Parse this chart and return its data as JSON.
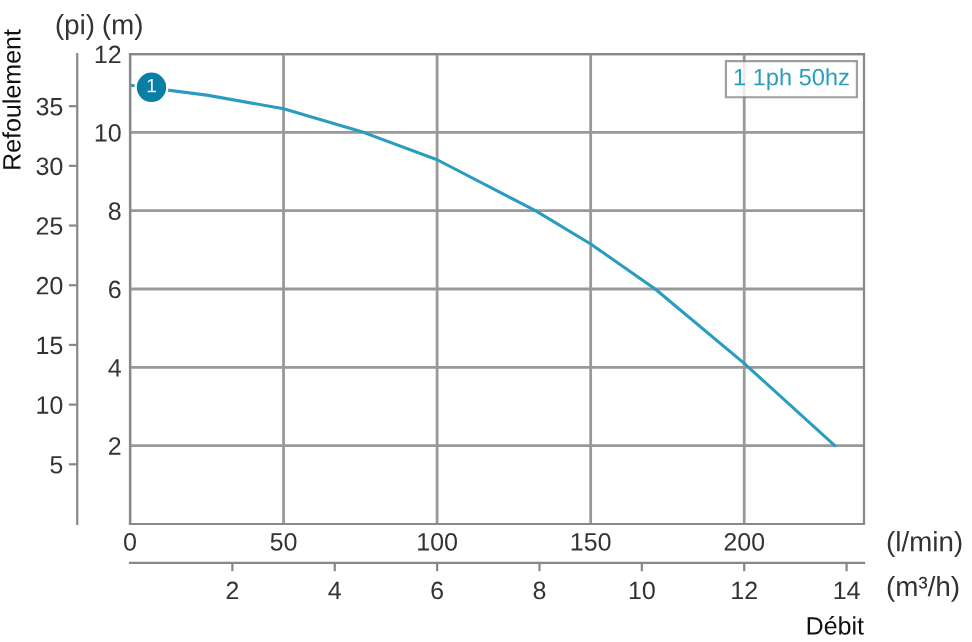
{
  "chart_data": {
    "type": "line",
    "x": [
      0,
      25,
      50,
      76,
      100,
      132,
      150,
      171,
      200,
      229.5
    ],
    "series": [
      {
        "name": "1 1ph 50hz",
        "color": "#2a9cc0",
        "values": [
          11.2,
          10.95,
          10.6,
          10.0,
          9.3,
          8.0,
          7.15,
          6.0,
          4.1,
          2.0
        ]
      }
    ],
    "xlim": [
      0,
      239
    ],
    "xticks": [
      0,
      50,
      100,
      150,
      200
    ],
    "xlabel": "(l/min)",
    "ylim": [
      0,
      12
    ],
    "yticks": [
      2,
      4,
      6,
      8,
      10,
      12
    ],
    "ylabel": "(m)",
    "y2lim": [
      0,
      39.37
    ],
    "y2ticks": [
      5,
      10,
      15,
      20,
      25,
      30,
      35
    ],
    "y2label": "(pi)",
    "x2lim": [
      0,
      14.34
    ],
    "x2ticks": [
      2,
      4,
      6,
      8,
      10,
      12,
      14
    ],
    "x2label": "(m³/h)",
    "annotations": [
      {
        "text": "1",
        "x": 7,
        "y": 11.15
      },
      "Refoulement",
      "Débit"
    ],
    "grid": true,
    "legend": "top right",
    "line_style": "solid"
  }
}
